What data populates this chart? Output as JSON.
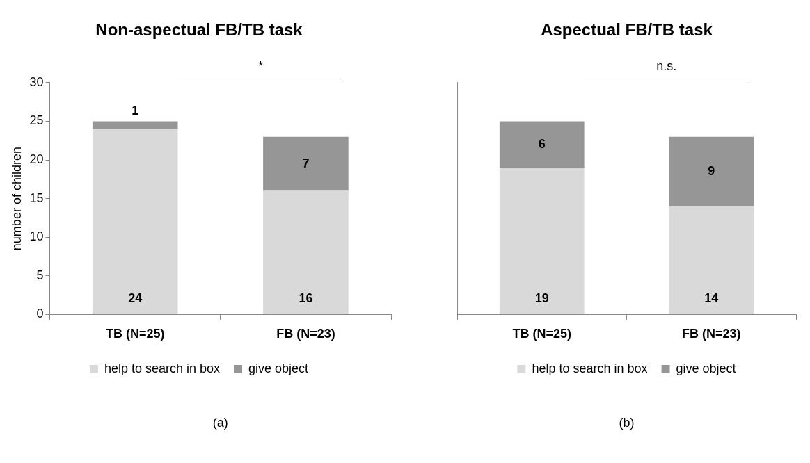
{
  "chart_data": [
    {
      "type": "bar",
      "title": "Non-aspectual FB/TB task",
      "ylabel": "number of children",
      "categories": [
        "TB (N=25)",
        "FB (N=23)"
      ],
      "stacked": true,
      "series": [
        {
          "name": "help to search in box",
          "color": "#d9d9d9",
          "values": [
            24,
            16
          ]
        },
        {
          "name": "give object",
          "color": "#969696",
          "values": [
            1,
            7
          ]
        }
      ],
      "ylim": [
        0,
        30
      ],
      "yticks": [
        0,
        5,
        10,
        15,
        20,
        25,
        30
      ],
      "grid": false,
      "legend": "bottom",
      "data_labels": true,
      "annotations": [
        "*",
        "(a)"
      ]
    },
    {
      "type": "bar",
      "title": "Aspectual FB/TB task",
      "categories": [
        "TB (N=25)",
        "FB (N=23)"
      ],
      "stacked": true,
      "series": [
        {
          "name": "help to search in box",
          "color": "#d9d9d9",
          "values": [
            19,
            14
          ]
        },
        {
          "name": "give object",
          "color": "#969696",
          "values": [
            6,
            9
          ]
        }
      ],
      "ylim": [
        0,
        30
      ],
      "yticks": [
        0,
        5,
        10,
        15,
        20,
        25,
        30
      ],
      "tick_labels": "x",
      "grid": false,
      "legend": "bottom",
      "data_labels": true,
      "annotations": [
        "n.s.",
        "(b)"
      ]
    }
  ]
}
